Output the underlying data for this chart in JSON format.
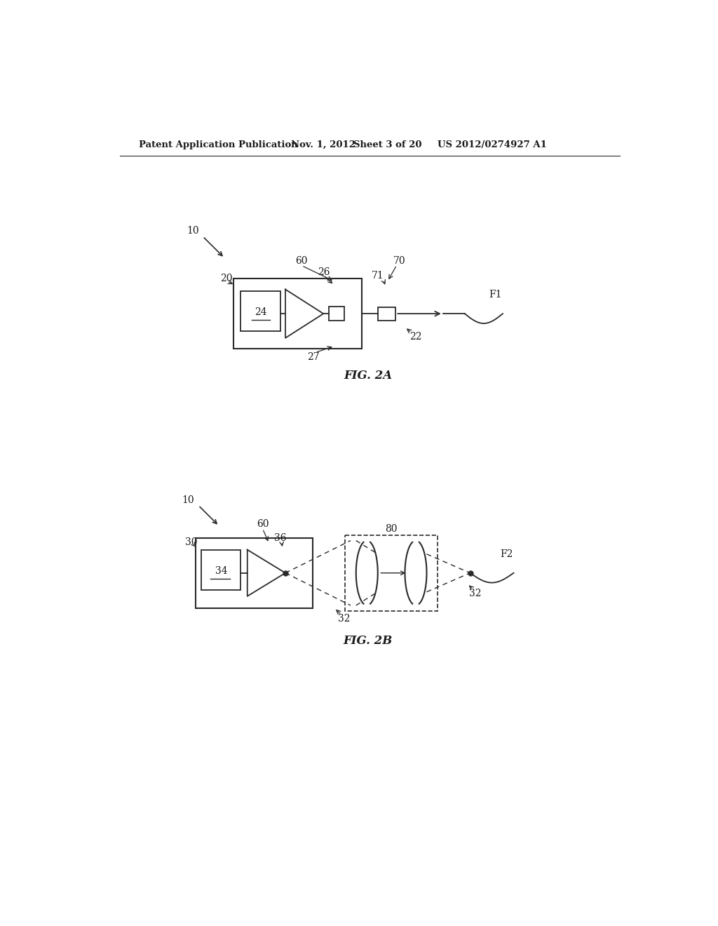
{
  "bg_color": "#ffffff",
  "header_text": "Patent Application Publication",
  "header_date": "Nov. 1, 2012",
  "header_sheet": "Sheet 3 of 20",
  "header_patent": "US 2012/0274927 A1",
  "fig2a_label": "FIG. 2A",
  "fig2b_label": "FIG. 2B",
  "line_color": "#2a2a2a",
  "text_color": "#1a1a1a"
}
